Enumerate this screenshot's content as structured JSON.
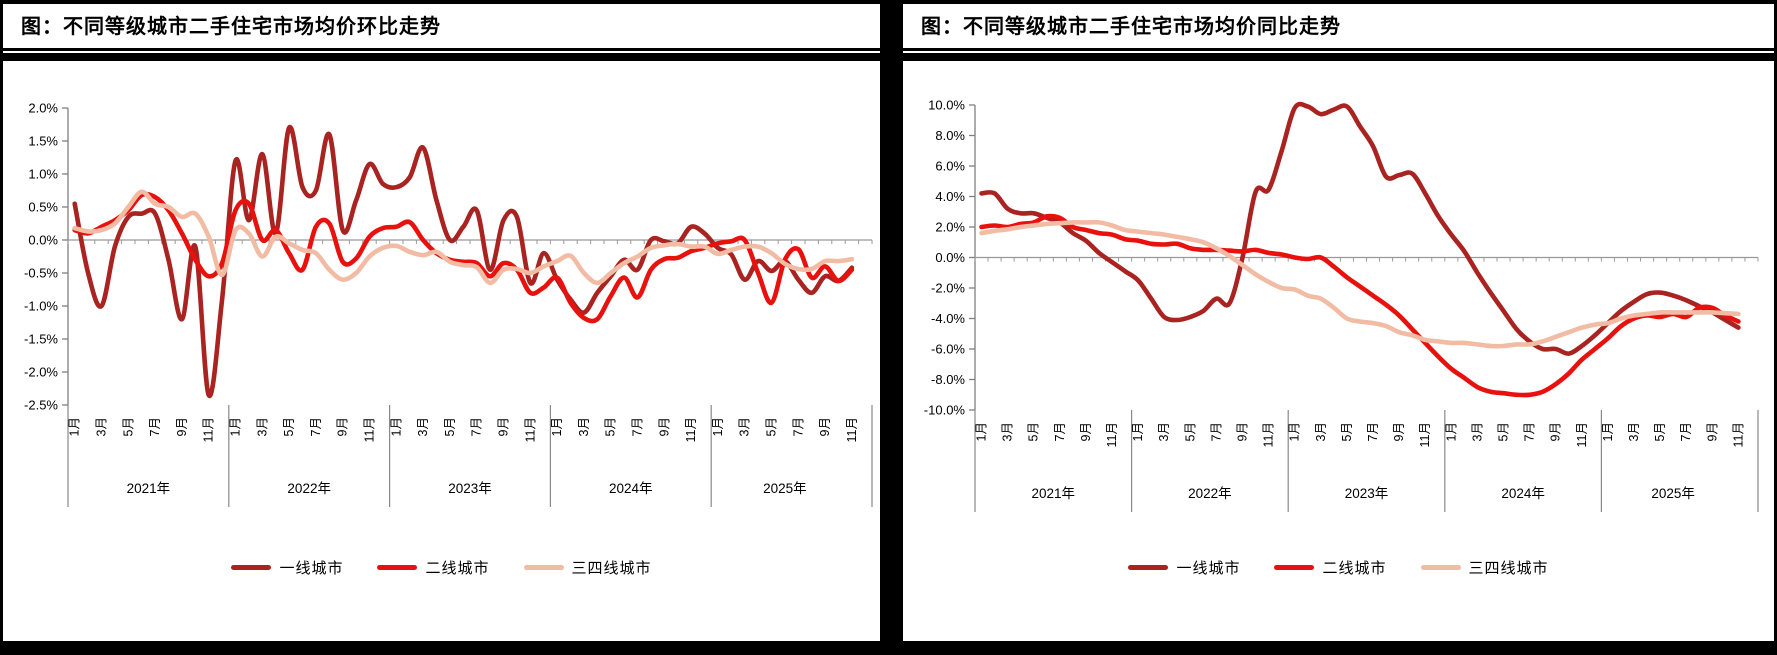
{
  "panels": [
    {
      "title": "图：不同等级城市二手住宅市场均价环比走势"
    },
    {
      "title": "图：不同等级城市二手住宅市场均价同比走势"
    }
  ],
  "colors": {
    "tier1": "#A92321",
    "tier2": "#E8110D",
    "tier34": "#F2BCA4",
    "axis": "#7F7F7F",
    "gridline": "#999999",
    "separator": "#888888",
    "text": "#000000"
  },
  "chart_data": [
    {
      "type": "line",
      "title": "图：不同等级城市二手住宅市场均价环比走势",
      "ylabel": "",
      "xlabel": "",
      "unit": "%",
      "ylim": [
        -2.5,
        2.0
      ],
      "ytick_step": 0.5,
      "grid": false,
      "legend_position": "bottom",
      "month_tick_labels": [
        "1月",
        "3月",
        "5月",
        "7月",
        "9月",
        "11月"
      ],
      "years": [
        {
          "label": "2021年",
          "months": 12
        },
        {
          "label": "2022年",
          "months": 12
        },
        {
          "label": "2023年",
          "months": 12
        },
        {
          "label": "2024年",
          "months": 12
        },
        {
          "label": "2025年",
          "months": 11
        }
      ],
      "series": [
        {
          "name": "一线城市",
          "color_key": "tier1",
          "values": [
            0.55,
            -0.5,
            -1.0,
            -0.1,
            0.35,
            0.4,
            0.4,
            -0.3,
            -1.2,
            -0.1,
            -2.35,
            -0.9,
            1.2,
            0.3,
            1.3,
            0.1,
            1.7,
            0.8,
            0.75,
            1.6,
            0.15,
            0.6,
            1.15,
            0.85,
            0.8,
            0.95,
            1.4,
            0.6,
            0.0,
            0.2,
            0.45,
            -0.45,
            0.3,
            0.35,
            -0.65,
            -0.2,
            -0.6,
            -0.9,
            -1.1,
            -0.8,
            -0.55,
            -0.3,
            -0.45,
            0.0,
            -0.02,
            -0.05,
            0.2,
            0.1,
            -0.12,
            -0.22,
            -0.6,
            -0.32,
            -0.47,
            -0.32,
            -0.6,
            -0.8,
            -0.55,
            -0.62,
            -0.42
          ]
        },
        {
          "name": "二线城市",
          "color_key": "tier2",
          "values": [
            0.15,
            0.1,
            0.2,
            0.3,
            0.45,
            0.68,
            0.65,
            0.45,
            0.1,
            -0.3,
            -0.55,
            -0.35,
            0.45,
            0.55,
            0.0,
            0.15,
            -0.2,
            -0.45,
            0.2,
            0.25,
            -0.33,
            -0.28,
            0.05,
            0.18,
            0.2,
            0.27,
            0.0,
            -0.2,
            -0.3,
            -0.33,
            -0.35,
            -0.55,
            -0.35,
            -0.45,
            -0.8,
            -0.72,
            -0.57,
            -0.95,
            -1.18,
            -1.2,
            -0.85,
            -0.57,
            -0.87,
            -0.45,
            -0.29,
            -0.27,
            -0.17,
            -0.12,
            -0.05,
            -0.02,
            0.0,
            -0.5,
            -0.95,
            -0.3,
            -0.14,
            -0.57,
            -0.4,
            -0.62,
            -0.45
          ]
        },
        {
          "name": "三四线城市",
          "color_key": "tier34",
          "values": [
            0.18,
            0.13,
            0.15,
            0.25,
            0.5,
            0.73,
            0.55,
            0.5,
            0.35,
            0.4,
            0.05,
            -0.53,
            0.15,
            0.1,
            -0.25,
            0.05,
            -0.05,
            -0.15,
            -0.2,
            -0.45,
            -0.6,
            -0.5,
            -0.25,
            -0.12,
            -0.09,
            -0.18,
            -0.23,
            -0.18,
            -0.33,
            -0.38,
            -0.41,
            -0.65,
            -0.45,
            -0.44,
            -0.5,
            -0.4,
            -0.32,
            -0.24,
            -0.5,
            -0.65,
            -0.5,
            -0.35,
            -0.25,
            -0.12,
            -0.08,
            -0.06,
            -0.1,
            -0.1,
            -0.21,
            -0.15,
            -0.1,
            -0.1,
            -0.2,
            -0.36,
            -0.44,
            -0.44,
            -0.32,
            -0.32,
            -0.29
          ]
        }
      ]
    },
    {
      "type": "line",
      "title": "图：不同等级城市二手住宅市场均价同比走势",
      "ylabel": "",
      "xlabel": "",
      "unit": "%",
      "ylim": [
        -10.0,
        10.0
      ],
      "ytick_step": 2.0,
      "grid": false,
      "legend_position": "bottom",
      "month_tick_labels": [
        "1月",
        "3月",
        "5月",
        "7月",
        "9月",
        "11月"
      ],
      "years": [
        {
          "label": "2021年",
          "months": 12
        },
        {
          "label": "2022年",
          "months": 12
        },
        {
          "label": "2023年",
          "months": 12
        },
        {
          "label": "2024年",
          "months": 12
        },
        {
          "label": "2025年",
          "months": 11
        }
      ],
      "series": [
        {
          "name": "一线城市",
          "color_key": "tier1",
          "values": [
            4.2,
            4.2,
            3.2,
            2.9,
            2.9,
            2.6,
            2.3,
            1.6,
            1.1,
            0.3,
            -0.3,
            -0.9,
            -1.5,
            -2.7,
            -3.9,
            -4.1,
            -3.9,
            -3.5,
            -2.7,
            -3.0,
            0.0,
            4.3,
            4.45,
            7.0,
            9.8,
            9.9,
            9.4,
            9.7,
            9.9,
            8.6,
            7.3,
            5.3,
            5.4,
            5.5,
            4.2,
            2.7,
            1.5,
            0.4,
            -1.0,
            -2.3,
            -3.5,
            -4.7,
            -5.5,
            -6.0,
            -6.0,
            -6.3,
            -5.8,
            -5.1,
            -4.3,
            -3.5,
            -2.9,
            -2.4,
            -2.3,
            -2.5,
            -2.8,
            -3.2,
            -3.6,
            -4.1,
            -4.6
          ]
        },
        {
          "name": "二线城市",
          "color_key": "tier2",
          "values": [
            2.0,
            2.1,
            2.0,
            2.2,
            2.3,
            2.7,
            2.6,
            2.0,
            1.8,
            1.6,
            1.5,
            1.2,
            1.1,
            0.9,
            0.85,
            0.9,
            0.6,
            0.5,
            0.5,
            0.45,
            0.4,
            0.5,
            0.3,
            0.2,
            0.0,
            -0.1,
            0.0,
            -0.6,
            -1.3,
            -1.9,
            -2.5,
            -3.1,
            -3.8,
            -4.7,
            -5.6,
            -6.5,
            -7.3,
            -7.9,
            -8.5,
            -8.8,
            -8.9,
            -9.0,
            -9.0,
            -8.8,
            -8.3,
            -7.6,
            -6.7,
            -6.0,
            -5.3,
            -4.5,
            -4.0,
            -3.8,
            -3.9,
            -3.7,
            -3.9,
            -3.3,
            -3.3,
            -3.8,
            -4.2
          ]
        },
        {
          "name": "三四线城市",
          "color_key": "tier34",
          "values": [
            1.6,
            1.75,
            1.85,
            2.0,
            2.1,
            2.2,
            2.25,
            2.3,
            2.3,
            2.3,
            2.1,
            1.8,
            1.7,
            1.6,
            1.5,
            1.35,
            1.2,
            1.0,
            0.6,
            0.1,
            -0.5,
            -1.1,
            -1.6,
            -2.0,
            -2.1,
            -2.5,
            -2.7,
            -3.3,
            -4.0,
            -4.2,
            -4.3,
            -4.5,
            -4.9,
            -5.1,
            -5.4,
            -5.5,
            -5.6,
            -5.6,
            -5.7,
            -5.8,
            -5.8,
            -5.7,
            -5.7,
            -5.5,
            -5.2,
            -4.9,
            -4.6,
            -4.4,
            -4.3,
            -4.0,
            -3.8,
            -3.7,
            -3.6,
            -3.6,
            -3.6,
            -3.6,
            -3.6,
            -3.65,
            -3.7
          ]
        }
      ]
    }
  ]
}
